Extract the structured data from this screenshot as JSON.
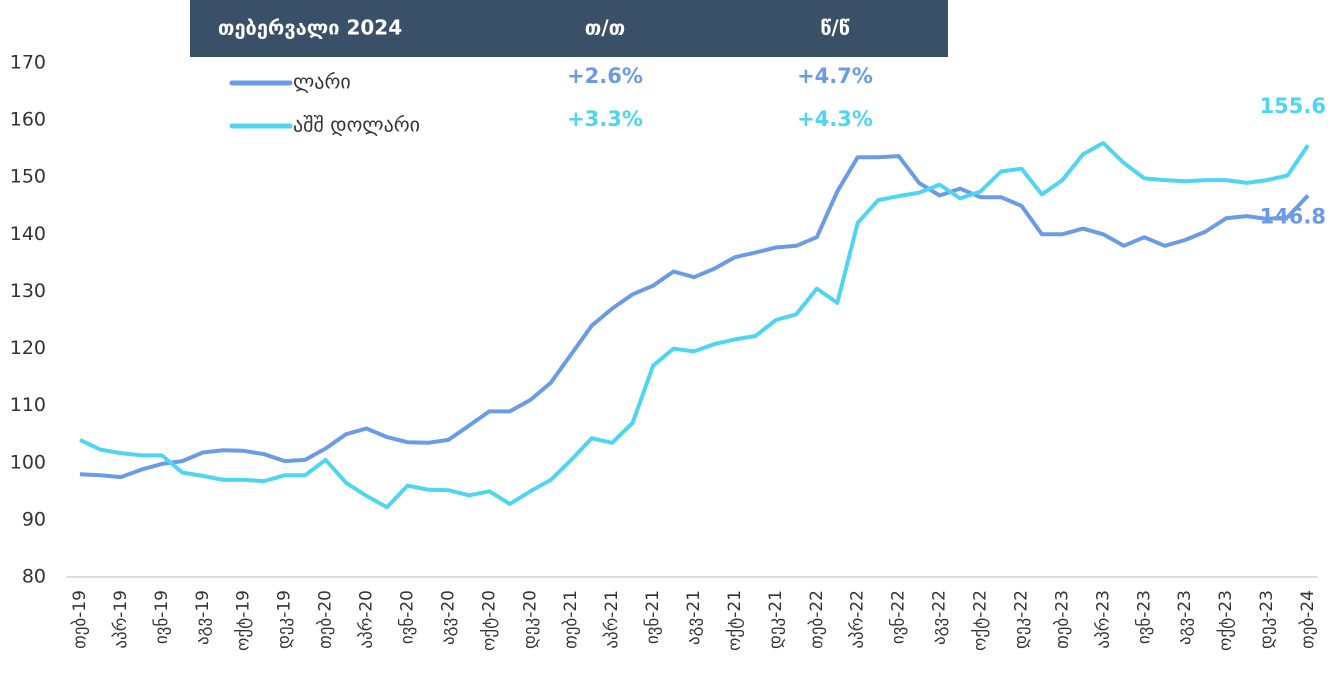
{
  "chart_data": {
    "type": "line",
    "categories": [
      "თებ-19",
      null,
      "აპრ-19",
      null,
      "ივნ-19",
      null,
      "აგვ-19",
      null,
      "ოქტ-19",
      null,
      "დეკ-19",
      null,
      "თებ-20",
      null,
      "აპრ-20",
      null,
      "ივნ-20",
      null,
      "აგვ-20",
      null,
      "ოქტ-20",
      null,
      "დეკ-20",
      null,
      "თებ-21",
      null,
      "აპრ-21",
      null,
      "ივნ-21",
      null,
      "აგვ-21",
      null,
      "ოქტ-21",
      null,
      "დეკ-21",
      null,
      "თებ-22",
      null,
      "აპრ-22",
      null,
      "ივნ-22",
      null,
      "აგვ-22",
      null,
      "ოქტ-22",
      null,
      "დეკ-22",
      null,
      "თებ-23",
      null,
      "აპრ-23",
      null,
      "ივნ-23",
      null,
      "აგვ-23",
      null,
      "ოქტ-23",
      null,
      "დეკ-23",
      null,
      "თებ-24"
    ],
    "series": [
      {
        "name": "ლარი",
        "color": "#6b9be6",
        "values": [
          98,
          97.8,
          97.5,
          98.8,
          99.8,
          100.3,
          101.8,
          102.2,
          102.1,
          101.5,
          100.3,
          100.5,
          102.5,
          105,
          106,
          104.5,
          103.6,
          103.5,
          104,
          106.5,
          109,
          109,
          111,
          114,
          119,
          124,
          127,
          129.5,
          131,
          133.5,
          132.5,
          134,
          136,
          136.8,
          137.7,
          138,
          139.5,
          147.5,
          153.5,
          153.5,
          153.7,
          149,
          146.8,
          148,
          146.5,
          146.5,
          145,
          140,
          140,
          141,
          140,
          138,
          139.5,
          138,
          139,
          140.5,
          142.8,
          143.2,
          142.7,
          143,
          146.8
        ]
      },
      {
        "name": "აშშ დოლარი",
        "color": "#4fd5f2",
        "values": [
          104,
          102.3,
          101.7,
          101.3,
          101.3,
          98.3,
          97.7,
          97,
          97,
          96.8,
          97.8,
          97.8,
          100.5,
          96.5,
          94.2,
          92.2,
          96,
          95.3,
          95.2,
          94.3,
          95,
          92.8,
          95,
          97,
          100.5,
          104.3,
          103.5,
          107,
          117,
          120,
          119.5,
          120.8,
          121.6,
          122.2,
          125,
          126,
          130.5,
          128,
          142,
          146,
          146.7,
          147.3,
          148.7,
          146.3,
          147.5,
          151,
          151.5,
          147,
          149.5,
          154,
          156,
          152.5,
          149.8,
          149.5,
          149.3,
          149.5,
          149.5,
          149,
          149.5,
          150.3,
          155.6
        ]
      }
    ],
    "ylim": [
      80,
      170
    ],
    "yticks": [
      80,
      90,
      100,
      110,
      120,
      130,
      140,
      150,
      160,
      170
    ],
    "grid": false,
    "table": {
      "header": [
        "თებერვალი 2024",
        "თ/თ",
        "წ/წ"
      ],
      "changes": [
        [
          "+2.6%",
          "+4.7%"
        ],
        [
          "+3.3%",
          "+4.3%"
        ]
      ]
    }
  }
}
